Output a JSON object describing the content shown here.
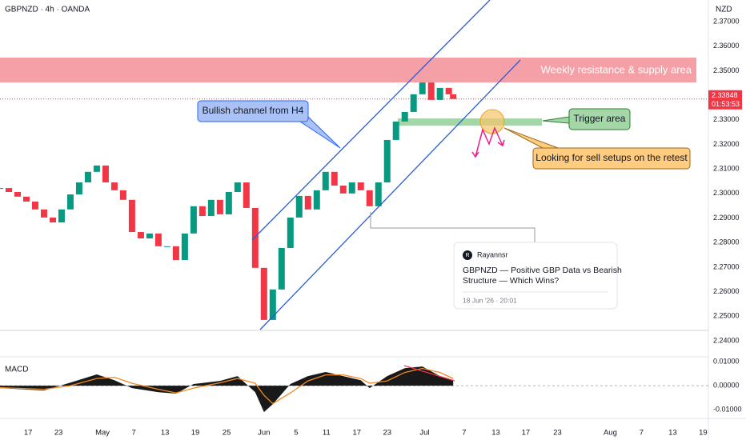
{
  "chart_data": [
    {
      "type": "candlestick",
      "title": "GBPNZD · 4h · OANDA",
      "y_axis_label": "NZD",
      "x": [
        0,
        2,
        4,
        6,
        8,
        10,
        12,
        14,
        16,
        18,
        20,
        22,
        24,
        26,
        28,
        30,
        32,
        34,
        36,
        38,
        40,
        42,
        44,
        46,
        48,
        50,
        52,
        54,
        56,
        58,
        60,
        62,
        64,
        66,
        68,
        70,
        72,
        74,
        76,
        78,
        80,
        82,
        84,
        86,
        88,
        90,
        92,
        94,
        96,
        98,
        100,
        102,
        103
      ],
      "values": [
        2.3022,
        2.3006,
        2.2987,
        2.2967,
        2.2935,
        2.2902,
        2.2882,
        2.2935,
        2.2996,
        2.3045,
        2.3088,
        2.3114,
        2.3045,
        2.3013,
        2.2974,
        2.2843,
        2.2817,
        2.2837,
        2.2785,
        2.2785,
        2.2729,
        2.2837,
        2.2948,
        2.2908,
        2.2974,
        2.2915,
        2.3006,
        2.3045,
        2.2941,
        2.2697,
        2.2485,
        2.2609,
        2.2778,
        2.2902,
        2.299,
        2.2935,
        2.3013,
        2.3088,
        2.3032,
        2.3,
        2.3045,
        2.3013,
        2.2948,
        2.3045,
        2.3218,
        2.3293,
        2.3332,
        2.3404,
        2.3452,
        2.3381,
        2.343,
        2.3404,
        2.33848
      ],
      "up_color": "#089981",
      "down_color": "#f23645",
      "grid": false,
      "xlim": [
        0,
        161
      ],
      "ylim": [
        2.2338,
        2.3788
      ],
      "yticks": [
        {
          "value": 2.37,
          "label": "2.37000"
        },
        {
          "value": 2.36,
          "label": "2.36000"
        },
        {
          "value": 2.35,
          "label": "2.35000"
        },
        {
          "value": 2.33,
          "label": "2.33000"
        },
        {
          "value": 2.32,
          "label": "2.32000"
        },
        {
          "value": 2.31,
          "label": "2.31000"
        },
        {
          "value": 2.3,
          "label": "2.30000"
        },
        {
          "value": 2.29,
          "label": "2.29000"
        },
        {
          "value": 2.28,
          "label": "2.28000"
        },
        {
          "value": 2.27,
          "label": "2.27000"
        },
        {
          "value": 2.26,
          "label": "2.26000"
        },
        {
          "value": 2.25,
          "label": "2.25000"
        },
        {
          "value": 2.24,
          "label": "2.24000"
        }
      ],
      "xticks": [
        {
          "value": 6.4,
          "label": "17"
        },
        {
          "value": 13.3,
          "label": "23"
        },
        {
          "value": 23.3,
          "label": "May"
        },
        {
          "value": 30.4,
          "label": "7"
        },
        {
          "value": 37.5,
          "label": "13"
        },
        {
          "value": 44.4,
          "label": "19"
        },
        {
          "value": 51.5,
          "label": "25"
        },
        {
          "value": 60,
          "label": "Jun"
        },
        {
          "value": 67.3,
          "label": "5"
        },
        {
          "value": 74.2,
          "label": "11"
        },
        {
          "value": 81.1,
          "label": "17"
        },
        {
          "value": 88,
          "label": "23"
        },
        {
          "value": 96.5,
          "label": "Jul"
        },
        {
          "value": 105.5,
          "label": "7"
        },
        {
          "value": 112.7,
          "label": "13"
        },
        {
          "value": 119.5,
          "label": "17"
        },
        {
          "value": 126.7,
          "label": "23"
        },
        {
          "value": 138.7,
          "label": "Aug"
        },
        {
          "value": 145.8,
          "label": "7"
        },
        {
          "value": 152.9,
          "label": "13"
        },
        {
          "value": 159.8,
          "label": "19"
        }
      ],
      "countdown": "01:53:53",
      "annotations": {
        "resistance": "Weekly resistance & supply area",
        "channel": "Bullish channel from H4",
        "trigger": "Trigger area",
        "sell": "Looking for sell setups on the retest"
      },
      "idea": {
        "avatar": "R",
        "author": "Rayannsr",
        "title_line1": "GBPNZD — Positive GBP Data vs Bearish",
        "title_line2": "Structure — Which Wins?",
        "date": "18 Jun '26 · 20:01"
      }
    },
    {
      "type": "macd",
      "title": "MACD",
      "x": [
        0,
        10,
        16,
        22,
        26,
        30,
        36,
        40,
        44,
        50,
        54,
        58,
        60,
        62,
        66,
        70,
        74,
        78,
        82,
        84,
        88,
        92,
        96,
        100,
        103
      ],
      "series": [
        {
          "color": "#000000",
          "values": [
            -0.001,
            -0.002,
            0.0013,
            0.0047,
            0.0023,
            -0.001,
            -0.0027,
            -0.0033,
            0.0007,
            0.002,
            0.004,
            -0.0027,
            -0.011,
            -0.0077,
            0.0007,
            0.004,
            0.0057,
            0.004,
            0.0023,
            -0.001,
            0.004,
            0.0073,
            0.008,
            0.004,
            0.002
          ]
        },
        {
          "color": "#f08a24",
          "values": [
            -0.0008,
            -0.0015,
            0,
            0.003,
            0.0035,
            0.001,
            -0.0015,
            -0.003,
            -0.001,
            0.0012,
            0.003,
            0.001,
            -0.004,
            -0.0075,
            -0.003,
            0.002,
            0.0045,
            0.0045,
            0.003,
            0.001,
            0.002,
            0.0055,
            0.0072,
            0.0055,
            0.003
          ]
        }
      ],
      "xlim": [
        0,
        161
      ],
      "ylim": [
        -0.0133,
        0.0117
      ],
      "yticks": [
        {
          "value": 0.01,
          "label": "0.01000"
        },
        {
          "value": 0,
          "label": "0.00000"
        },
        {
          "value": -0.01,
          "label": "-0.01000"
        }
      ]
    }
  ]
}
